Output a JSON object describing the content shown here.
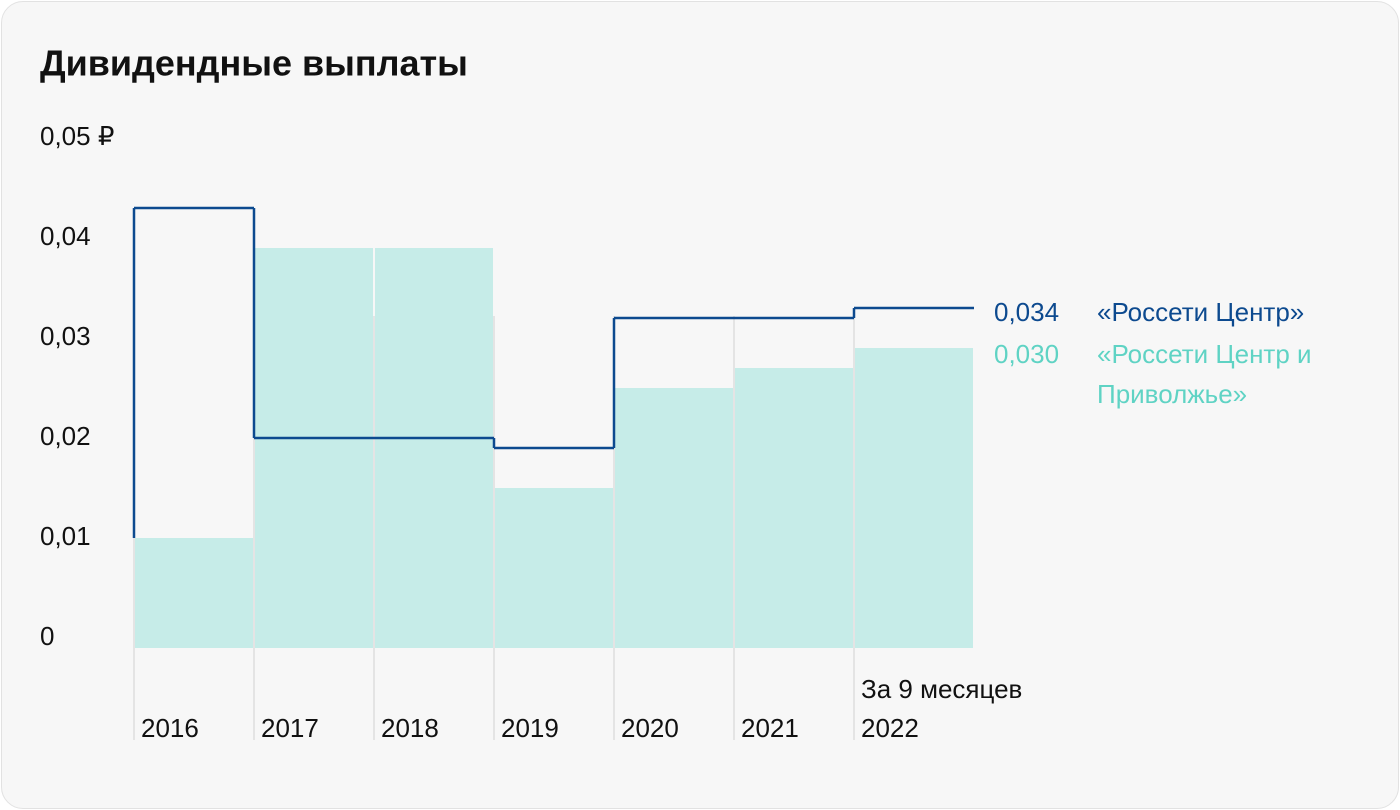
{
  "chart_data": {
    "type": "bar",
    "title": "Дивидендные выплаты",
    "categories": [
      "2016",
      "2017",
      "2018",
      "2019",
      "2020",
      "2021",
      "2022"
    ],
    "annotation": "За 9 месяцев",
    "ylim": [
      0,
      0.05
    ],
    "yticks": [
      0,
      {
        "value": 0.01,
        "label": "0,01"
      },
      {
        "value": 0.02,
        "label": "0,02"
      },
      {
        "value": 0.03,
        "label": "0,03"
      },
      {
        "value": 0.04,
        "label": "0,04"
      },
      {
        "value": 0.05,
        "label": "0,05 ₽"
      }
    ],
    "series": [
      {
        "name": "«Россети Центр»",
        "type": "step",
        "color": "#0d4a8f",
        "values": [
          0.044,
          0.021,
          0.021,
          0.02,
          0.033,
          0.033,
          0.034
        ],
        "value_labels": [
          null,
          null,
          null,
          null,
          null,
          null,
          "0,034"
        ]
      },
      {
        "name": "«Россети Центр и Приволжье»",
        "type": "bar",
        "color": "#5fd3c4",
        "fill": "#c6ece8",
        "values": [
          0.011,
          0.04,
          0.04,
          0.016,
          0.026,
          0.028,
          0.03
        ],
        "value_labels": [
          null,
          null,
          null,
          null,
          null,
          null,
          "0,030"
        ]
      }
    ]
  }
}
